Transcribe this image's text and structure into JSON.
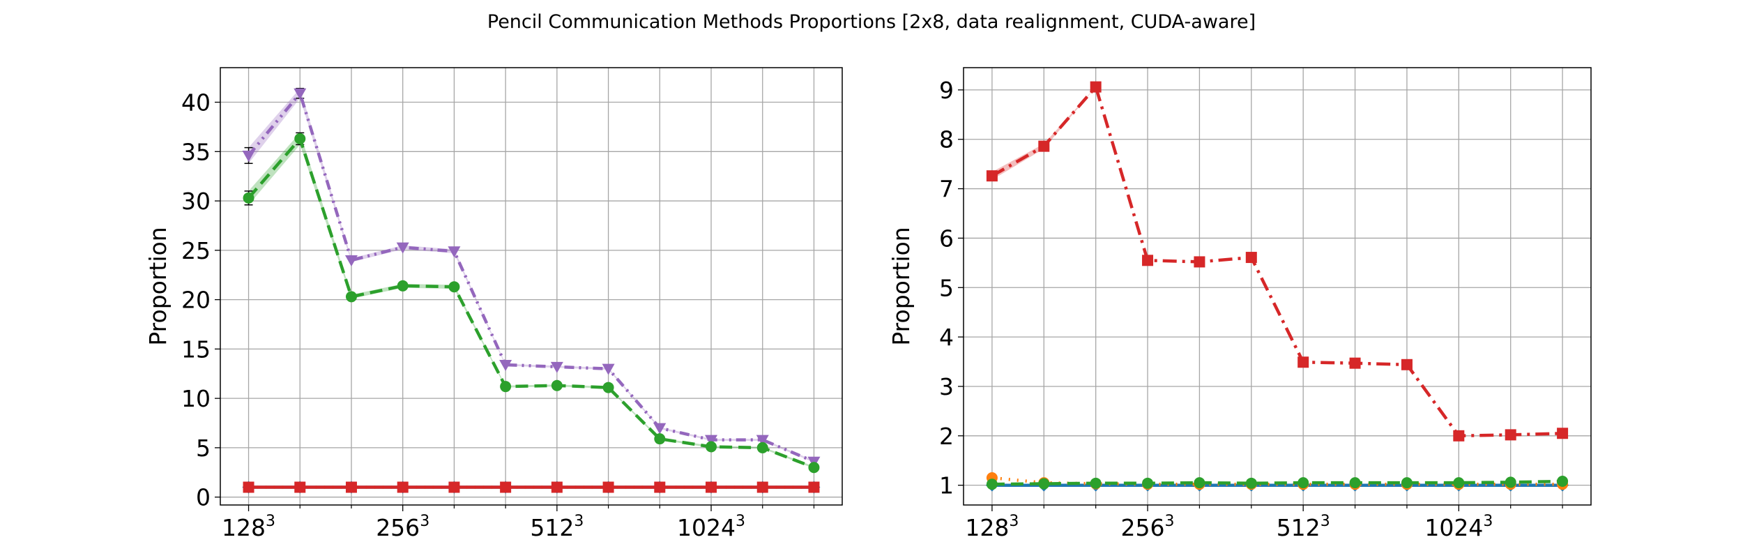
{
  "figure_title": "Pencil Communication Methods Proportions [2x8, data realignment, CUDA-aware]",
  "chart_data": [
    {
      "type": "line",
      "title": "",
      "xlabel": "",
      "ylabel": "Proportion",
      "x": [
        0,
        1,
        2,
        3,
        4,
        5,
        6,
        7,
        8,
        9,
        10,
        11
      ],
      "xticks": [
        {
          "pos": 0,
          "base": "128",
          "exp": "3"
        },
        {
          "pos": 3,
          "base": "256",
          "exp": "3"
        },
        {
          "pos": 6,
          "base": "512",
          "exp": "3"
        },
        {
          "pos": 9,
          "base": "1024",
          "exp": "3"
        }
      ],
      "minor_ticks": [
        1,
        2,
        4,
        5,
        7,
        8,
        10,
        11
      ],
      "xlim": [
        -0.55,
        11.55
      ],
      "ylim": [
        -0.8,
        43.5
      ],
      "yticks": [
        0,
        5,
        10,
        15,
        20,
        25,
        30,
        35,
        40
      ],
      "grid": true,
      "series": [
        {
          "color": "#1f77b4",
          "dash": "solid",
          "marker": "diamond",
          "values": [
            1,
            1,
            1,
            1,
            1,
            1,
            1,
            1,
            1,
            1,
            1,
            1
          ],
          "err": [
            0,
            0,
            0,
            0,
            0,
            0,
            0,
            0,
            0,
            0,
            0,
            0
          ]
        },
        {
          "color": "#ff7f0e",
          "dash": "dot",
          "marker": "circle",
          "values": [
            1,
            1,
            1,
            1,
            1,
            1,
            1,
            1,
            1,
            1,
            1,
            1
          ],
          "err": [
            0,
            0,
            0,
            0,
            0,
            0,
            0,
            0,
            0,
            0,
            0,
            0
          ]
        },
        {
          "color": "#9467bd",
          "dash": "dashdotdot",
          "marker": "triangle-down",
          "values": [
            34.6,
            40.9,
            24.0,
            25.3,
            24.9,
            13.4,
            13.2,
            13.0,
            7.0,
            5.8,
            5.8,
            3.6
          ],
          "err": [
            0.8,
            0.5,
            0.2,
            0.2,
            0.2,
            0.1,
            0.1,
            0.1,
            0.1,
            0.1,
            0.1,
            0.1
          ]
        },
        {
          "color": "#2ca02c",
          "dash": "dash",
          "marker": "circle",
          "values": [
            30.3,
            36.3,
            20.3,
            21.4,
            21.3,
            11.2,
            11.3,
            11.1,
            5.9,
            5.1,
            5.0,
            3.0
          ],
          "err": [
            0.7,
            0.6,
            0.2,
            0.2,
            0.2,
            0.1,
            0.1,
            0.1,
            0.1,
            0.1,
            0.1,
            0.1
          ]
        },
        {
          "color": "#d62728",
          "dash": "solid",
          "marker": "square",
          "values": [
            1.0,
            1.0,
            1.0,
            1.0,
            1.0,
            1.0,
            1.0,
            1.0,
            1.0,
            1.0,
            1.0,
            1.0
          ],
          "err": [
            0,
            0,
            0,
            0,
            0,
            0,
            0,
            0,
            0,
            0,
            0,
            0
          ]
        }
      ]
    },
    {
      "type": "line",
      "title": "",
      "xlabel": "",
      "ylabel": "Proportion",
      "x": [
        0,
        1,
        2,
        3,
        4,
        5,
        6,
        7,
        8,
        9,
        10,
        11
      ],
      "xticks": [
        {
          "pos": 0,
          "base": "128",
          "exp": "3"
        },
        {
          "pos": 3,
          "base": "256",
          "exp": "3"
        },
        {
          "pos": 6,
          "base": "512",
          "exp": "3"
        },
        {
          "pos": 9,
          "base": "1024",
          "exp": "3"
        }
      ],
      "minor_ticks": [
        1,
        2,
        4,
        5,
        7,
        8,
        10,
        11
      ],
      "xlim": [
        -0.55,
        11.55
      ],
      "ylim": [
        0.6,
        9.45
      ],
      "yticks": [
        1,
        2,
        3,
        4,
        5,
        6,
        7,
        8,
        9
      ],
      "grid": true,
      "series": [
        {
          "color": "#1f77b4",
          "dash": "solid",
          "marker": "diamond",
          "values": [
            1,
            1,
            1,
            1,
            1,
            1,
            1,
            1,
            1,
            1,
            1,
            1
          ],
          "err": [
            0,
            0,
            0,
            0,
            0,
            0,
            0,
            0,
            0,
            0,
            0,
            0
          ]
        },
        {
          "color": "#ff7f0e",
          "dash": "dot",
          "marker": "circle",
          "values": [
            1.15,
            1.05,
            1.03,
            1.02,
            1.02,
            1.02,
            1.02,
            1.02,
            1.02,
            1.02,
            1.02,
            1.02
          ],
          "err": [
            0,
            0,
            0,
            0,
            0,
            0,
            0,
            0,
            0,
            0,
            0,
            0
          ]
        },
        {
          "color": "#2ca02c",
          "dash": "dash",
          "marker": "circle",
          "values": [
            1.02,
            1.03,
            1.04,
            1.04,
            1.05,
            1.04,
            1.05,
            1.05,
            1.05,
            1.05,
            1.06,
            1.08
          ],
          "err": [
            0,
            0,
            0,
            0,
            0,
            0,
            0,
            0,
            0,
            0,
            0,
            0
          ]
        },
        {
          "color": "#d62728",
          "dash": "dashdot",
          "marker": "square",
          "values": [
            7.26,
            7.86,
            9.06,
            5.55,
            5.52,
            5.61,
            3.49,
            3.47,
            3.44,
            2.0,
            2.02,
            2.05
          ],
          "err": [
            0.08,
            0.05,
            0,
            0,
            0,
            0,
            0,
            0,
            0,
            0,
            0,
            0
          ]
        }
      ]
    }
  ]
}
